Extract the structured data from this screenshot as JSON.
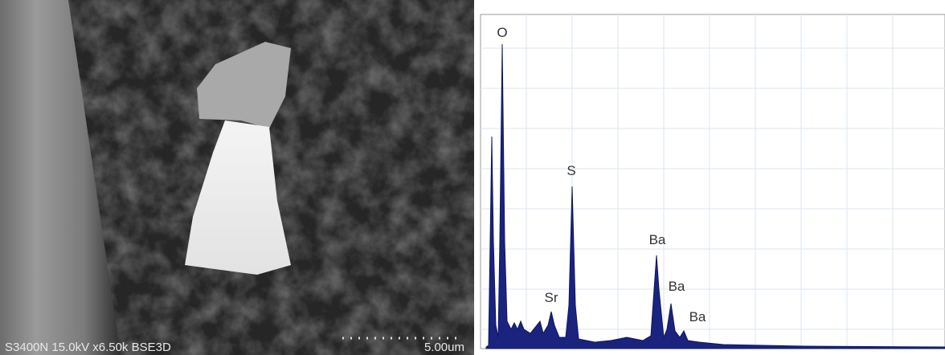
{
  "image": {
    "caption": "S3400N 15.0kV x6.50k BSE3D",
    "scale_bar": "5.00um"
  },
  "spectrum": {
    "peaks": [
      "O",
      "S",
      "Sr",
      "Ba",
      "Ba",
      "Ba"
    ]
  }
}
